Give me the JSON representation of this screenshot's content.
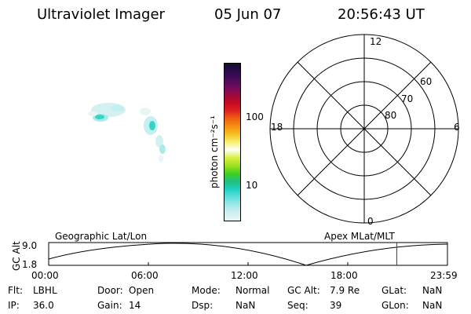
{
  "header": {
    "instrument": "Ultraviolet Imager",
    "date": "05 Jun 07",
    "time": "20:56:43 UT"
  },
  "colorbar": {
    "label": "photon cm⁻²s⁻¹",
    "ticks": [
      "100",
      "10"
    ],
    "colors": [
      "#101030",
      "#2a0a4a",
      "#4b0a5a",
      "#700a60",
      "#9a0a40",
      "#c50a20",
      "#e02020",
      "#f06010",
      "#f59010",
      "#f6c020",
      "#f7f070",
      "#ffffff",
      "#d8f040",
      "#a0e020",
      "#40d020",
      "#20c080",
      "#20d0c0",
      "#60e0e0",
      "#a0e8e8",
      "#d0f0f0",
      "#eaf4f4"
    ]
  },
  "polar": {
    "mlt_labels": {
      "top": "12",
      "left": "18",
      "right": "6",
      "bottom": "0"
    },
    "lat_labels": [
      "60",
      "70",
      "80"
    ]
  },
  "plot": {
    "ylabel": "GC Alt",
    "yticks": [
      "9.0",
      "1.8"
    ],
    "left_title": "Geographic Lat/Lon",
    "right_title": "Apex MLat/MLT",
    "xticks": [
      "00:00",
      "06:00",
      "12:00",
      "18:00",
      "23:59"
    ],
    "current_time_fraction": 0.873,
    "marker_color": "#e00000"
  },
  "status": {
    "row1": [
      {
        "k": "Flt:",
        "v": "LBHL"
      },
      {
        "k": "Door:",
        "v": "Open"
      },
      {
        "k": "Mode:",
        "v": "Normal"
      },
      {
        "k": "GC Alt:",
        "v": "7.9 Re"
      },
      {
        "k": "GLat:",
        "v": "NaN"
      }
    ],
    "row2": [
      {
        "k": "IP:",
        "v": "36.0"
      },
      {
        "k": "Gain:",
        "v": "14"
      },
      {
        "k": "Dsp:",
        "v": "NaN"
      },
      {
        "k": "Seq:",
        "v": "39"
      },
      {
        "k": "GLon:",
        "v": "NaN"
      }
    ]
  }
}
